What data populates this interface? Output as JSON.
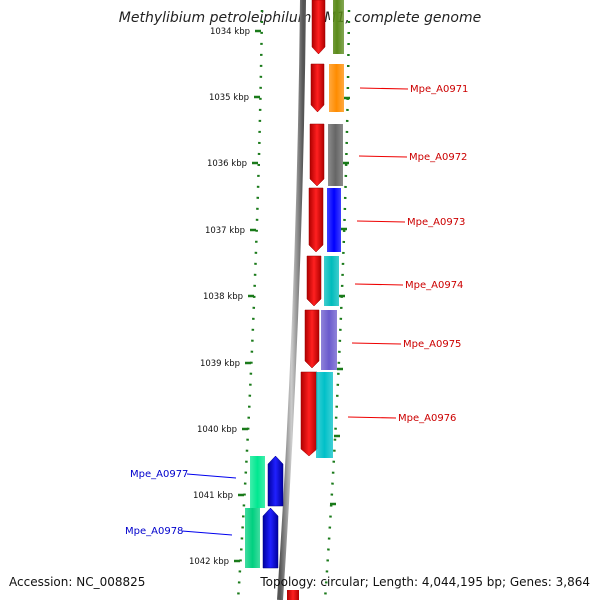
{
  "title": "Methylibium petroleiphilum PM1, complete genome",
  "accession_label": "Accession: NC_008825",
  "summary_label": "Topology: circular; Length: 4,044,195 bp; Genes: 3,864",
  "ruler": {
    "ticks": [
      "1034 kbp",
      "1035 kbp",
      "1036 kbp",
      "1037 kbp",
      "1038 kbp",
      "1039 kbp",
      "1040 kbp",
      "1041 kbp",
      "1042 kbp"
    ],
    "color": "#1a7a1a"
  },
  "colors": {
    "backbone": "#808080",
    "forward_strand": "#ee0000",
    "forward_label": "#cc0000",
    "reverse_strand": "#0000ee",
    "reverse_label": "#0000cc"
  },
  "genes": [
    {
      "name": "Mpe_A0971",
      "strand": "forward",
      "color": "#ff8c00",
      "labeled": true
    },
    {
      "name": "Mpe_A0972",
      "strand": "forward",
      "color": "#666666",
      "labeled": true
    },
    {
      "name": "Mpe_A0973",
      "strand": "forward",
      "color": "#0000ff",
      "labeled": true
    },
    {
      "name": "Mpe_A0974",
      "strand": "forward",
      "color": "#00bcbc",
      "labeled": true
    },
    {
      "name": "Mpe_A0975",
      "strand": "forward",
      "color": "#6a5acd",
      "labeled": true
    },
    {
      "name": "Mpe_A0976",
      "strand": "forward",
      "color": "#00c0c8",
      "labeled": true
    },
    {
      "name": "Mpe_A0977",
      "strand": "reverse",
      "color": "#00e890",
      "labeled": true
    },
    {
      "name": "Mpe_A0978",
      "strand": "reverse",
      "color": "#00d080",
      "labeled": true
    }
  ]
}
